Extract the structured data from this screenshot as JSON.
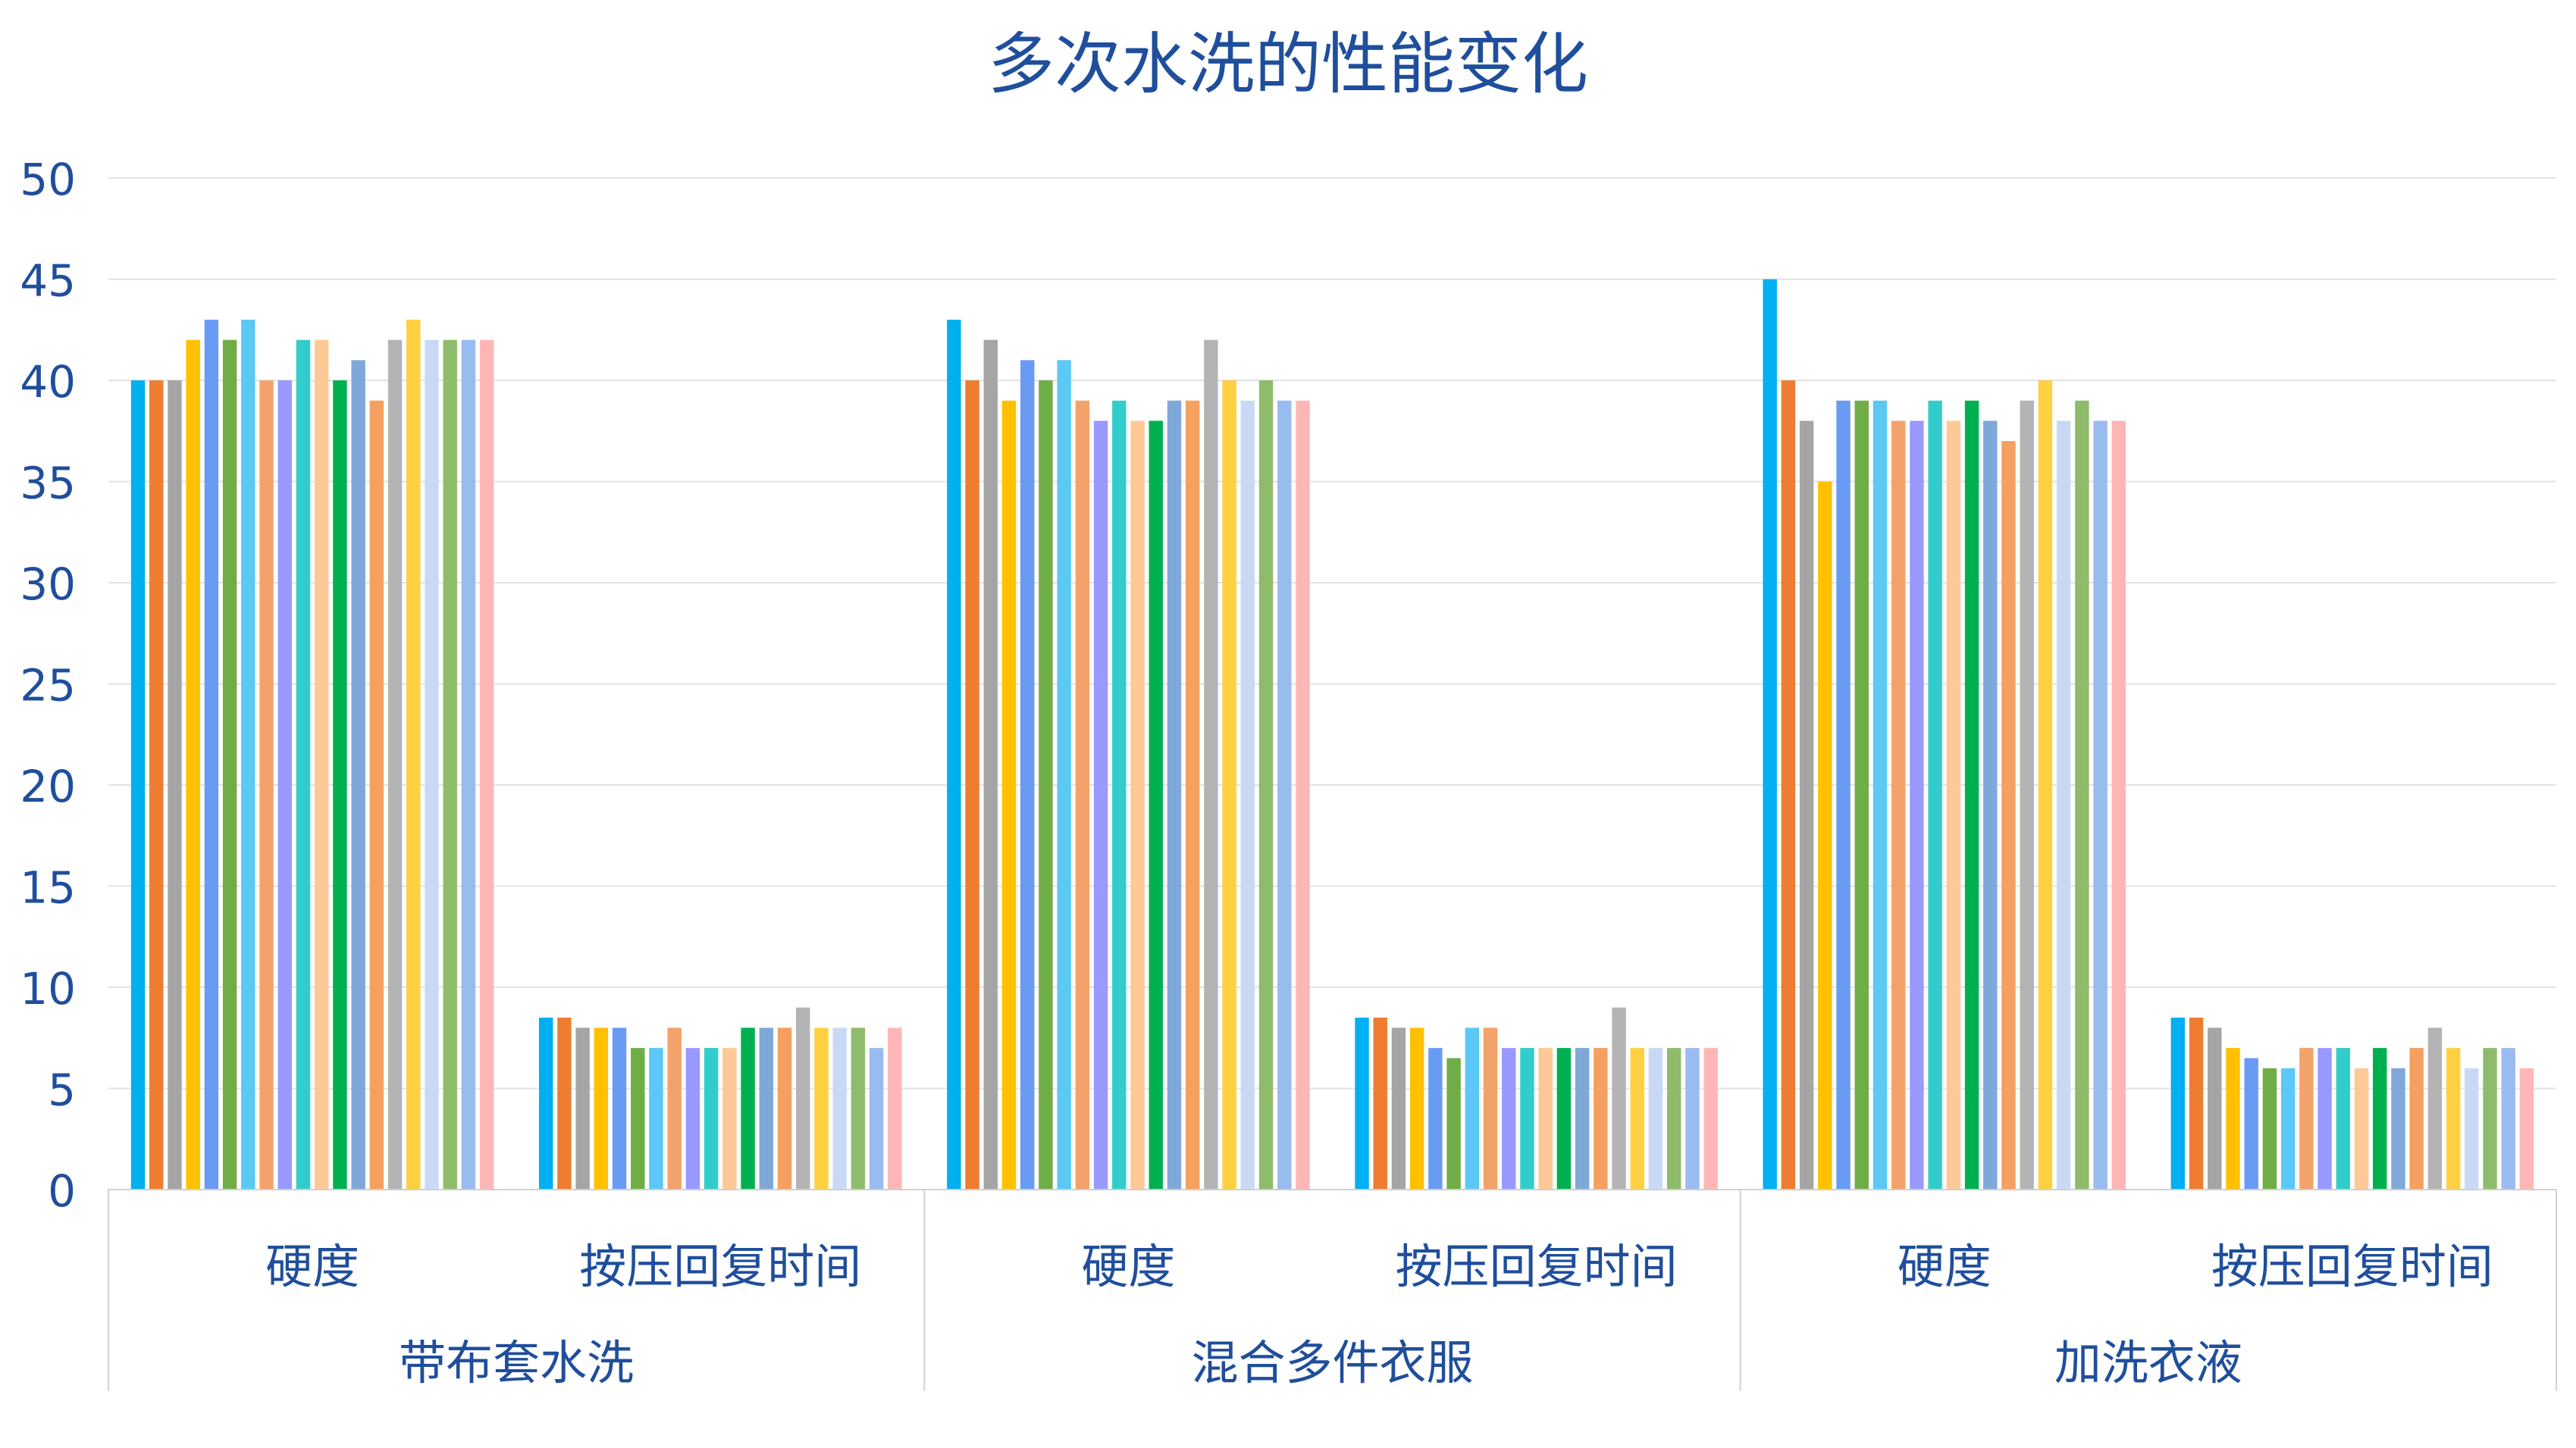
{
  "chart_data": {
    "type": "bar",
    "title": "多次水洗的性能变化",
    "xlabel": "",
    "ylabel": "",
    "ylim": [
      0,
      50
    ],
    "yticks": [
      0,
      5,
      10,
      15,
      20,
      25,
      30,
      35,
      40,
      45,
      50
    ],
    "grid": true,
    "legend": "none",
    "groups": [
      {
        "label": "带布套水洗",
        "subgroups": [
          {
            "label": "硬度",
            "values": [
              40,
              40,
              40,
              42,
              43,
              42,
              43,
              40,
              40,
              42,
              42,
              40,
              41,
              39,
              42,
              43,
              42,
              42,
              42,
              42
            ]
          },
          {
            "label": "按压回复时间",
            "values": [
              8.5,
              8.5,
              8,
              8,
              8,
              7,
              7,
              8,
              7,
              7,
              7,
              8,
              8,
              8,
              9,
              8,
              8,
              8,
              7,
              8
            ]
          }
        ]
      },
      {
        "label": "混合多件衣服",
        "subgroups": [
          {
            "label": "硬度",
            "values": [
              43,
              40,
              42,
              39,
              41,
              40,
              41,
              39,
              38,
              39,
              38,
              38,
              39,
              39,
              42,
              40,
              39,
              40,
              39,
              39
            ]
          },
          {
            "label": "按压回复时间",
            "values": [
              8.5,
              8.5,
              8,
              8,
              7,
              6.5,
              8,
              8,
              7,
              7,
              7,
              7,
              7,
              7,
              9,
              7,
              7,
              7,
              7,
              7
            ]
          }
        ]
      },
      {
        "label": "加洗衣液",
        "subgroups": [
          {
            "label": "硬度",
            "values": [
              45,
              40,
              38,
              35,
              39,
              39,
              39,
              38,
              38,
              39,
              38,
              39,
              38,
              37,
              39,
              40,
              38,
              39,
              38,
              38
            ]
          },
          {
            "label": "按压回复时间",
            "values": [
              8.5,
              8.5,
              8,
              7,
              6.5,
              6,
              6,
              7,
              7,
              7,
              6,
              7,
              6,
              7,
              8,
              7,
              6,
              7,
              7,
              6
            ]
          }
        ]
      }
    ],
    "bar_colors": [
      "#00B0F0",
      "#ED7D31",
      "#A5A5A5",
      "#FFC000",
      "#6A9BF4",
      "#70AD47",
      "#5BC8F5",
      "#F4A26B",
      "#9999FF",
      "#33CCCC",
      "#FFC996",
      "#00B050",
      "#7FA8D8",
      "#F4A060",
      "#B4B4B4",
      "#FFD040",
      "#C9D9F5",
      "#8FBC6B",
      "#99BBF0",
      "#FFB6B6"
    ],
    "colors": {
      "title": "#1F4E9C",
      "axis_text": "#1F4E9C",
      "grid": "#E3E3E3",
      "axis_line": "#D0D0D0"
    }
  }
}
